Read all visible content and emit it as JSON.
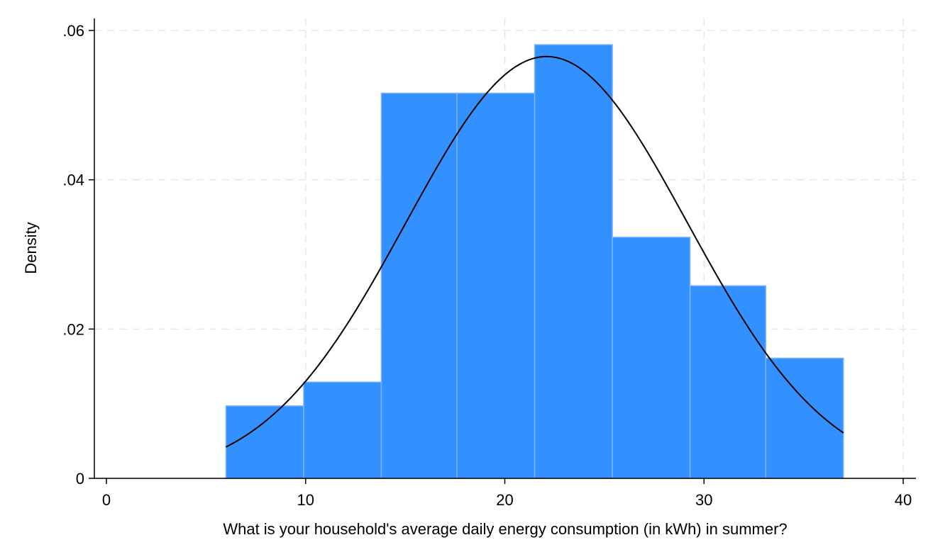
{
  "chart_data": {
    "type": "bar",
    "subtype": "histogram-with-normal-density",
    "xlabel": "What is your household's average daily energy consumption (in kWh) in summer?",
    "ylabel": "Density",
    "xlim": [
      0,
      40
    ],
    "ylim": [
      0,
      0.06
    ],
    "x_ticks": [
      0,
      10,
      20,
      30,
      40
    ],
    "x_tick_labels": [
      "0",
      "10",
      "20",
      "30",
      "40"
    ],
    "y_ticks": [
      0,
      0.02,
      0.04,
      0.06
    ],
    "y_tick_labels": [
      "0",
      ".02",
      ".04",
      ".06"
    ],
    "grid": true,
    "bins": [
      {
        "start": 6.0,
        "end": 9.9,
        "density": 0.0097
      },
      {
        "start": 9.9,
        "end": 13.8,
        "density": 0.0129
      },
      {
        "start": 13.8,
        "end": 17.6,
        "density": 0.0516
      },
      {
        "start": 17.6,
        "end": 21.5,
        "density": 0.0516
      },
      {
        "start": 21.5,
        "end": 25.4,
        "density": 0.0581
      },
      {
        "start": 25.4,
        "end": 29.3,
        "density": 0.0323
      },
      {
        "start": 29.3,
        "end": 33.1,
        "density": 0.0258
      },
      {
        "start": 33.1,
        "end": 37.0,
        "density": 0.0161
      }
    ],
    "normal_overlay": {
      "mean": 22.1,
      "sd": 7.06,
      "x_range": [
        6.0,
        37.0
      ]
    },
    "colors": {
      "bar_fill": "#3391ff",
      "bar_edge": "#7fb3ff",
      "curve": "#000000"
    }
  }
}
